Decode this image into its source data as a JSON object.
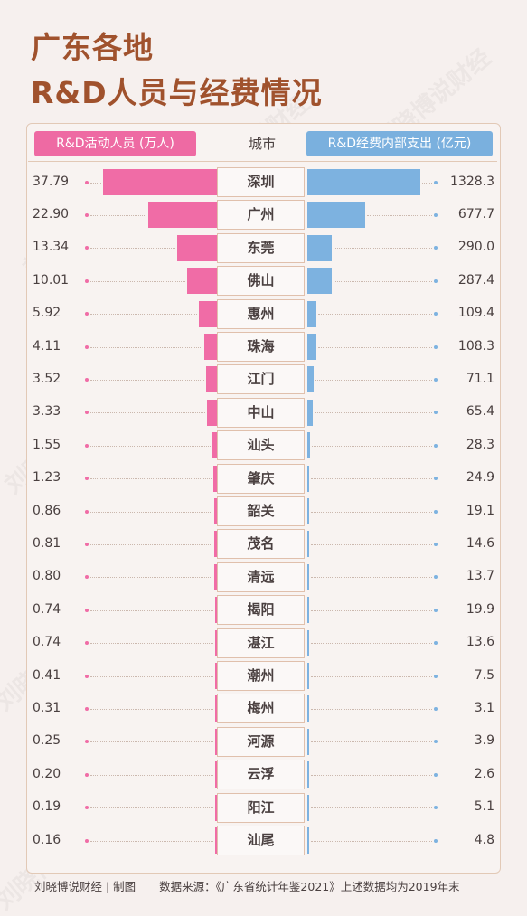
{
  "title_line1": "广东各地",
  "title_line2": "R&D人员与经费情况",
  "headers": {
    "left": "R&D活动人员 (万人)",
    "middle": "城市",
    "right": "R&D经费内部支出 (亿元)"
  },
  "footer": {
    "author": "刘晓博说财经 | 制图",
    "source": "数据来源：《广东省统计年鉴2021》上述数据均为2019年末"
  },
  "watermark": "刘晓博说财经",
  "colors": {
    "personnel_bar": "#f06ca6",
    "expenditure_bar": "#7db2e0",
    "title": "#a0522d"
  },
  "chart_data": {
    "type": "bar",
    "categories": [
      "深圳",
      "广州",
      "东莞",
      "佛山",
      "惠州",
      "珠海",
      "江门",
      "中山",
      "汕头",
      "肇庆",
      "韶关",
      "茂名",
      "清远",
      "揭阳",
      "湛江",
      "潮州",
      "梅州",
      "河源",
      "云浮",
      "阳江",
      "汕尾"
    ],
    "series": [
      {
        "name": "R&D活动人员 (万人)",
        "labels": [
          "37.79",
          "22.90",
          "13.34",
          "10.01",
          "5.92",
          "4.11",
          "3.52",
          "3.33",
          "1.55",
          "1.23",
          "0.86",
          "0.81",
          "0.80",
          "0.74",
          "0.74",
          "0.41",
          "0.31",
          "0.25",
          "0.20",
          "0.19",
          "0.16"
        ],
        "values": [
          37.79,
          22.9,
          13.34,
          10.01,
          5.92,
          4.11,
          3.52,
          3.33,
          1.55,
          1.23,
          0.86,
          0.81,
          0.8,
          0.74,
          0.74,
          0.41,
          0.31,
          0.25,
          0.2,
          0.19,
          0.16
        ]
      },
      {
        "name": "R&D经费内部支出 (亿元)",
        "labels": [
          "1328.3",
          "677.7",
          "290.0",
          "287.4",
          "109.4",
          "108.3",
          "71.1",
          "65.4",
          "28.3",
          "24.9",
          "19.1",
          "14.6",
          "13.7",
          "19.9",
          "13.6",
          "7.5",
          "3.1",
          "3.9",
          "2.6",
          "5.1",
          "4.8"
        ],
        "values": [
          1328.3,
          677.7,
          290.0,
          287.4,
          109.4,
          108.3,
          71.1,
          65.4,
          28.3,
          24.9,
          19.1,
          14.6,
          13.7,
          19.9,
          13.6,
          7.5,
          3.1,
          3.9,
          2.6,
          5.1,
          4.8
        ]
      }
    ]
  }
}
